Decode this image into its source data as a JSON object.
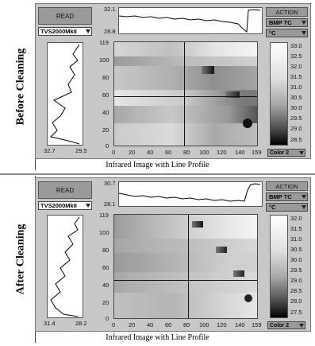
{
  "sections": [
    {
      "label": "Before Cleaning",
      "read_button": "READ",
      "sensor": "TVS2000MkII",
      "line_profile_top": {
        "max": "32.1",
        "min": "28.8"
      },
      "vertical_profile": {
        "left": "32.7",
        "right": "29.5"
      },
      "image_y_ticks": [
        "119",
        "100",
        "80",
        "60",
        "40",
        "20",
        "0"
      ],
      "image_x_ticks": [
        "0",
        "20",
        "40",
        "60",
        "80",
        "100",
        "120",
        "140",
        "159"
      ],
      "action_button": "ACTION",
      "mode": "BMP TC",
      "unit": "°C",
      "scale_ticks": [
        "33.0",
        "32.5",
        "32.0",
        "31.5",
        "31.0",
        "30.5",
        "30.0",
        "29.5",
        "29.0",
        "28.5"
      ],
      "palette": "Color 2",
      "caption": "Infrared Image with Line Profile"
    },
    {
      "label": "After Cleaning",
      "read_button": "READ",
      "sensor": "TVS2000MkII",
      "line_profile_top": {
        "max": "30.7",
        "min": "28.1"
      },
      "vertical_profile": {
        "left": "31.4",
        "right": "28.2"
      },
      "image_y_ticks": [
        "119",
        "100",
        "80",
        "60",
        "40",
        "20",
        "0"
      ],
      "image_x_ticks": [
        "0",
        "20",
        "40",
        "60",
        "80",
        "100",
        "120",
        "140",
        "159"
      ],
      "action_button": "ACTION",
      "mode": "BMP TC",
      "unit": "°C",
      "scale_ticks": [
        "32.0",
        "31.5",
        "31.0",
        "30.5",
        "30.0",
        "29.5",
        "29.0",
        "28.5",
        "28.0",
        "27.5"
      ],
      "palette": "Color 2",
      "caption": "Infrared Image with Line Profile"
    }
  ]
}
